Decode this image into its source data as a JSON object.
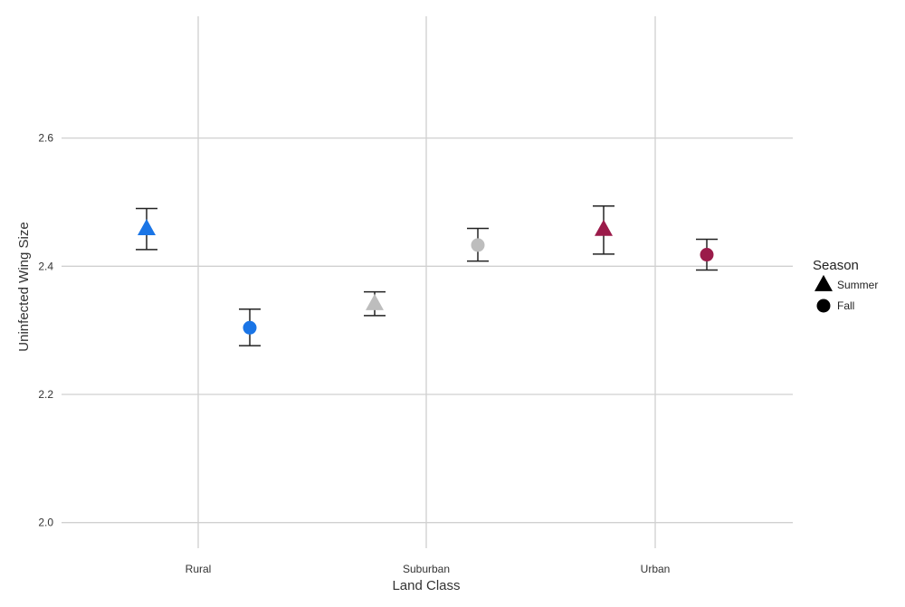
{
  "chart_data": {
    "type": "scatter",
    "title": "",
    "xlabel": "Land Class",
    "ylabel": "Uninfected Wing Size",
    "categories": [
      "Rural",
      "Suburban",
      "Urban"
    ],
    "ylim": [
      1.96,
      2.79
    ],
    "yticks": [
      2.0,
      2.2,
      2.4,
      2.6
    ],
    "ytick_labels": [
      "2.0",
      "2.2",
      "2.4",
      "2.6"
    ],
    "grid": true,
    "category_colors": {
      "Rural": "#1a75e6",
      "Suburban": "#bdbdbd",
      "Urban": "#9b1b4a"
    },
    "legend": {
      "title": "Season",
      "placement": "right",
      "entries": [
        {
          "label": "Summer",
          "shape": "triangle"
        },
        {
          "label": "Fall",
          "shape": "circle"
        }
      ]
    },
    "series": [
      {
        "name": "Summer",
        "shape": "triangle",
        "points": [
          {
            "category": "Rural",
            "y": 2.458,
            "ymin": 2.426,
            "ymax": 2.49
          },
          {
            "category": "Suburban",
            "y": 2.341,
            "ymin": 2.323,
            "ymax": 2.36
          },
          {
            "category": "Urban",
            "y": 2.457,
            "ymin": 2.419,
            "ymax": 2.494
          }
        ]
      },
      {
        "name": "Fall",
        "shape": "circle",
        "points": [
          {
            "category": "Rural",
            "y": 2.304,
            "ymin": 2.276,
            "ymax": 2.333
          },
          {
            "category": "Suburban",
            "y": 2.433,
            "ymin": 2.408,
            "ymax": 2.459
          },
          {
            "category": "Urban",
            "y": 2.418,
            "ymin": 2.394,
            "ymax": 2.442
          }
        ]
      }
    ]
  }
}
